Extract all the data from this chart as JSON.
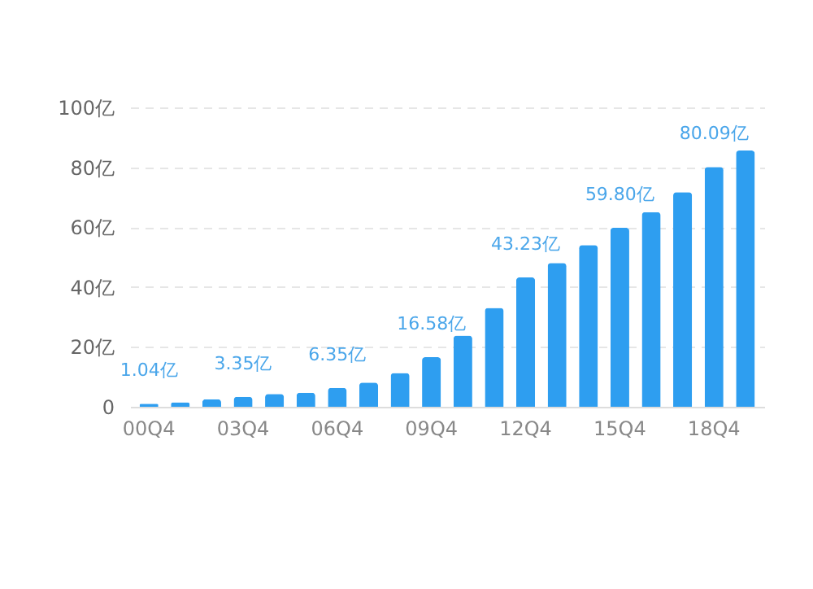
{
  "chart_data": {
    "type": "bar",
    "categories": [
      "00Q4",
      null,
      null,
      "03Q4",
      null,
      null,
      "06Q4",
      null,
      null,
      "09Q4",
      null,
      null,
      "12Q4",
      null,
      null,
      "15Q4",
      null,
      null,
      "18Q4",
      null
    ],
    "values": [
      1.04,
      1.5,
      2.5,
      3.35,
      4.3,
      4.7,
      6.35,
      8.1,
      11.3,
      16.58,
      23.8,
      33,
      43.23,
      48,
      54,
      59.8,
      65,
      71.7,
      80.09,
      85.6
    ],
    "value_labels": [
      "1.04亿",
      null,
      null,
      "3.35亿",
      null,
      null,
      "6.35亿",
      null,
      null,
      "16.58亿",
      null,
      null,
      "43.23亿",
      null,
      null,
      "59.80亿",
      null,
      null,
      "80.09亿",
      null
    ],
    "color": "#2e9ef0",
    "ylim": [
      0,
      100
    ],
    "yticks": [
      0,
      {
        "value": 20,
        "label": "20亿"
      },
      {
        "value": 40,
        "label": "40亿"
      },
      {
        "value": 60,
        "label": "60亿"
      },
      {
        "value": 80,
        "label": "80亿"
      },
      {
        "value": 100,
        "label": "100亿"
      }
    ],
    "grid": "y"
  }
}
